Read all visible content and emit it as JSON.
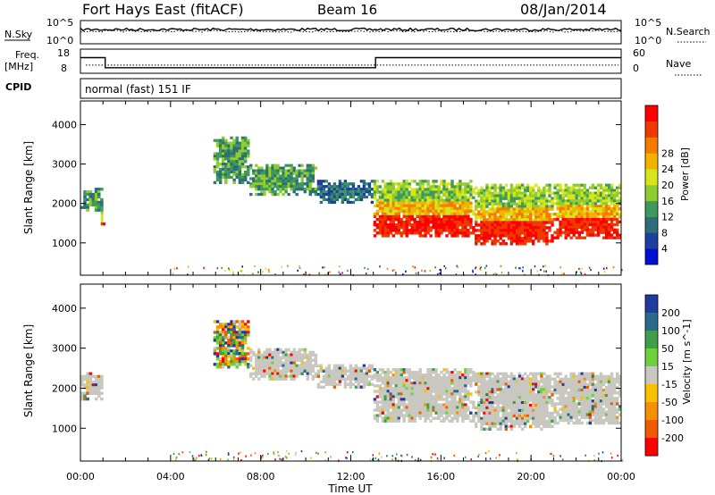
{
  "header": {
    "station": "Fort Hays East (fitACF)",
    "beam": "Beam 16",
    "date": "08/Jan/2014"
  },
  "noise_panel": {
    "left_label": "N.Sky",
    "right_label": "N.Search",
    "left_ticks": [
      "10^5",
      "10^0"
    ],
    "right_ticks": [
      "10^5",
      "10^0"
    ]
  },
  "freq_panel": {
    "left_label_1": "Freq.",
    "left_label_2": "[MHz]",
    "right_label": "Nave",
    "left_ticks": [
      "18",
      "8"
    ],
    "right_ticks": [
      "60",
      "0"
    ],
    "freq_steps": [
      {
        "start_hour": 0.0,
        "end_hour": 1.1,
        "value": 15
      },
      {
        "start_hour": 1.1,
        "end_hour": 13.1,
        "value": 10.5
      },
      {
        "start_hour": 13.1,
        "end_hour": 24.0,
        "value": 15
      }
    ],
    "nave_level": 22
  },
  "cpid": {
    "label": "CPID",
    "text": "normal (fast) 151 IF"
  },
  "chart_data": [
    {
      "type": "heatmap",
      "title": "",
      "xlabel": "",
      "ylabel": "Slant Range [km]",
      "x_range_hours": [
        0,
        24
      ],
      "ylim": [
        180,
        4600
      ],
      "y_ticks": [
        "1000",
        "2000",
        "3000",
        "4000"
      ],
      "colorbar": {
        "label": "Power [dB]",
        "ticks": [
          "4",
          "8",
          "12",
          "16",
          "20",
          "24",
          "28"
        ],
        "colors": [
          "#0010d0",
          "#1c3fa0",
          "#2f6e78",
          "#3d9a5c",
          "#8fcc30",
          "#d7e61a",
          "#f2b300",
          "#f57c00",
          "#ee3a00",
          "#ff0000"
        ]
      },
      "regions": [
        {
          "start_hour": 0.0,
          "end_hour": 1.0,
          "min_km": 1800,
          "max_km": 2400,
          "level": "medium"
        },
        {
          "start_hour": 0.9,
          "end_hour": 1.1,
          "min_km": 1450,
          "max_km": 1800,
          "level": "high"
        },
        {
          "start_hour": 5.9,
          "end_hour": 7.5,
          "min_km": 2500,
          "max_km": 3700,
          "level": "medium"
        },
        {
          "start_hour": 7.5,
          "end_hour": 10.5,
          "min_km": 2200,
          "max_km": 3000,
          "level": "medium"
        },
        {
          "start_hour": 10.5,
          "end_hour": 13.0,
          "min_km": 2000,
          "max_km": 2600,
          "level": "low"
        },
        {
          "start_hour": 13.0,
          "end_hour": 17.5,
          "min_km": 1150,
          "max_km": 2600,
          "level": "high"
        },
        {
          "start_hour": 17.5,
          "end_hour": 21.0,
          "min_km": 950,
          "max_km": 2500,
          "level": "high"
        },
        {
          "start_hour": 21.0,
          "end_hour": 24.0,
          "min_km": 1100,
          "max_km": 2500,
          "level": "high"
        }
      ]
    },
    {
      "type": "heatmap",
      "title": "",
      "xlabel": "Time UT",
      "ylabel": "Slant Range [km]",
      "x_range_hours": [
        0,
        24
      ],
      "x_ticks": [
        "00:00",
        "04:00",
        "08:00",
        "12:00",
        "16:00",
        "20:00",
        "00:00"
      ],
      "ylim": [
        180,
        4600
      ],
      "y_ticks": [
        "1000",
        "2000",
        "3000",
        "4000"
      ],
      "colorbar": {
        "label": "Velocity [m s^-1]",
        "ticks": [
          "200",
          "100",
          "50",
          "15",
          "-15",
          "-50",
          "-100",
          "-200"
        ],
        "colors": [
          "#1e3ca0",
          "#2a6b8c",
          "#3e9e4a",
          "#6fd13a",
          "#c8c8c0",
          "#f7c000",
          "#f59000",
          "#f05a00",
          "#ff0000"
        ]
      },
      "regions": [
        {
          "start_hour": 0.0,
          "end_hour": 1.0,
          "min_km": 1700,
          "max_km": 2400,
          "level": "ground"
        },
        {
          "start_hour": 5.9,
          "end_hour": 7.5,
          "min_km": 2500,
          "max_km": 3700,
          "level": "mixed"
        },
        {
          "start_hour": 7.5,
          "end_hour": 10.5,
          "min_km": 2200,
          "max_km": 3000,
          "level": "ground"
        },
        {
          "start_hour": 10.5,
          "end_hour": 13.0,
          "min_km": 2000,
          "max_km": 2600,
          "level": "ground"
        },
        {
          "start_hour": 13.0,
          "end_hour": 17.5,
          "min_km": 1150,
          "max_km": 2500,
          "level": "ground"
        },
        {
          "start_hour": 17.5,
          "end_hour": 21.0,
          "min_km": 950,
          "max_km": 2400,
          "level": "ground"
        },
        {
          "start_hour": 21.0,
          "end_hour": 24.0,
          "min_km": 1100,
          "max_km": 2400,
          "level": "ground"
        }
      ]
    }
  ]
}
